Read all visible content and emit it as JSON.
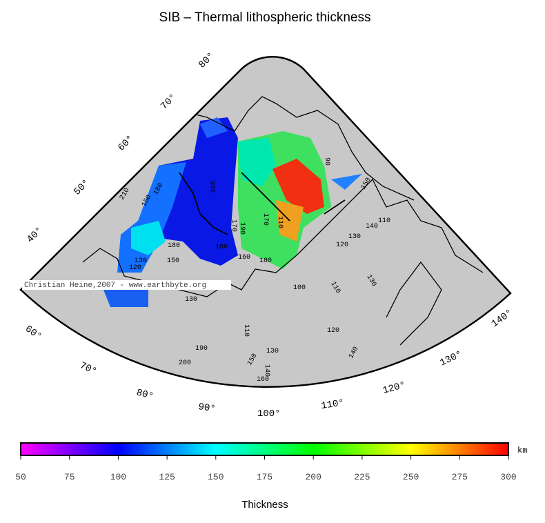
{
  "title": "SIB – Thermal lithospheric thickness",
  "credit": "Christian Heine,2007 - www.earthbyte.org",
  "map": {
    "latitude_labels": [
      "80°",
      "70°",
      "60°",
      "50°",
      "40°"
    ],
    "longitude_labels": [
      "60°",
      "70°",
      "80°",
      "90°",
      "100°",
      "110°",
      "120°",
      "130°",
      "140°"
    ],
    "contour_labels": [
      "90",
      "150",
      "140",
      "110",
      "120",
      "130",
      "140",
      "110",
      "130",
      "100",
      "110",
      "120",
      "130",
      "190",
      "200",
      "150",
      "140",
      "160",
      "130",
      "170",
      "180",
      "150",
      "120",
      "130",
      "210",
      "150",
      "180",
      "160",
      "170",
      "190",
      "180",
      "100",
      "160",
      "110"
    ]
  },
  "colorbar": {
    "range": [
      50,
      300
    ],
    "ticks": [
      50,
      75,
      100,
      125,
      150,
      175,
      200,
      225,
      250,
      275,
      300
    ],
    "unit": "km",
    "label": "Thickness"
  }
}
